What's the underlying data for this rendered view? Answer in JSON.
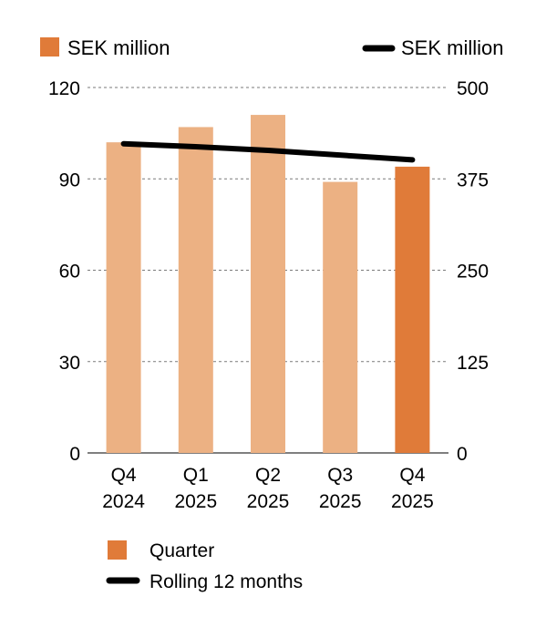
{
  "chart_data": {
    "type": "bar",
    "categories": [
      [
        "Q4",
        "2024"
      ],
      [
        "Q1",
        "2025"
      ],
      [
        "Q2",
        "2025"
      ],
      [
        "Q3",
        "2025"
      ],
      [
        "Q4",
        "2025"
      ]
    ],
    "left_axis": {
      "unit_label": "SEK million",
      "range": [
        0,
        120
      ],
      "ticks": [
        0,
        30,
        60,
        90,
        120
      ],
      "tick_labels": [
        "0",
        "30",
        "60",
        "90",
        "120"
      ]
    },
    "right_axis": {
      "unit_label": "SEK million",
      "range": [
        0,
        500
      ],
      "ticks": [
        0,
        125,
        250,
        375,
        500
      ],
      "tick_labels": [
        "0",
        "125",
        "250",
        "375",
        "500"
      ]
    },
    "series": [
      {
        "name": "Quarter",
        "kind": "bar",
        "axis": "left",
        "values": [
          102,
          107,
          111,
          89,
          94
        ],
        "colors": [
          "#ecb183",
          "#ecb183",
          "#ecb183",
          "#ecb183",
          "#e07b39"
        ]
      },
      {
        "name": "Rolling 12 months",
        "kind": "line",
        "axis": "right",
        "values": [
          423,
          419,
          414,
          null,
          401
        ],
        "color": "#000000"
      }
    ],
    "grid": "dashed horizontal",
    "legend_position": "bottom-left",
    "legend_swatch_color": "#e07b39"
  }
}
